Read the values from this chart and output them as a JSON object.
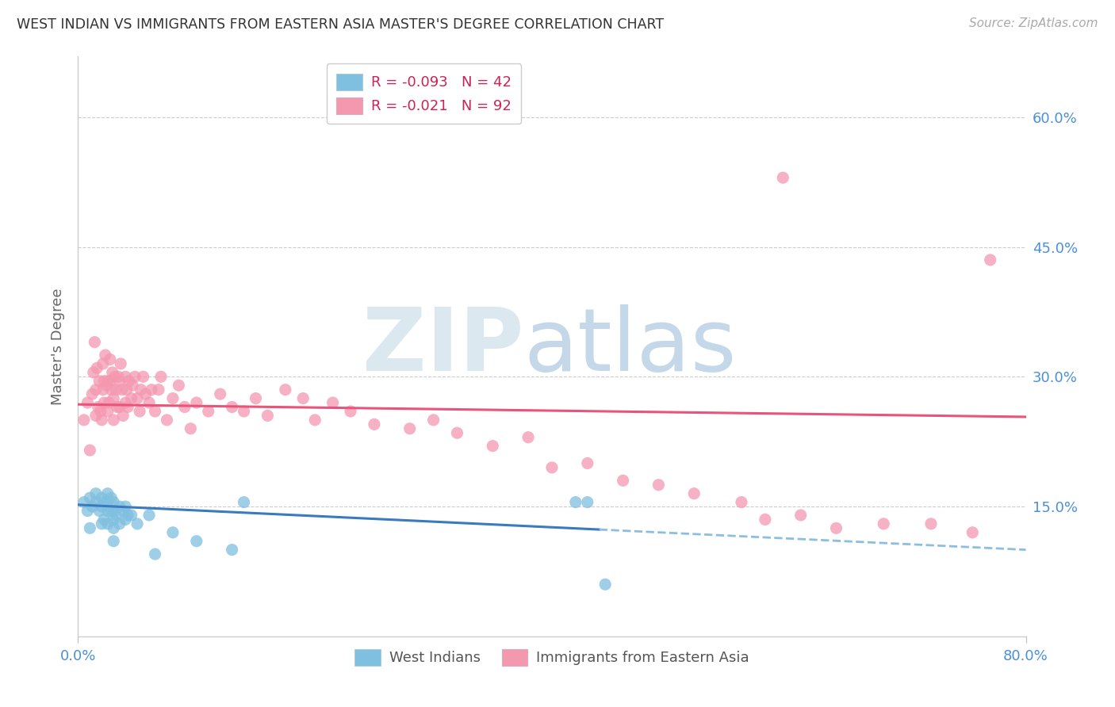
{
  "title": "WEST INDIAN VS IMMIGRANTS FROM EASTERN ASIA MASTER'S DEGREE CORRELATION CHART",
  "source": "Source: ZipAtlas.com",
  "ylabel": "Master's Degree",
  "ytick_labels": [
    "60.0%",
    "45.0%",
    "30.0%",
    "15.0%"
  ],
  "ytick_values": [
    0.6,
    0.45,
    0.3,
    0.15
  ],
  "xmin": 0.0,
  "xmax": 0.8,
  "ymin": 0.0,
  "ymax": 0.67,
  "legend_r1": "-0.093",
  "legend_n1": "42",
  "legend_r2": "-0.021",
  "legend_n2": "92",
  "color_blue": "#7fbfdf",
  "color_pink": "#f498b0",
  "color_blue_line": "#3a7abf",
  "color_pink_line": "#e8547a",
  "color_blue_dash": "#8cbfdf",
  "axis_label_color": "#4a90d9",
  "west_indians_x": [
    0.005,
    0.008,
    0.01,
    0.01,
    0.012,
    0.015,
    0.015,
    0.018,
    0.02,
    0.02,
    0.02,
    0.022,
    0.022,
    0.025,
    0.025,
    0.025,
    0.025,
    0.028,
    0.028,
    0.03,
    0.03,
    0.03,
    0.03,
    0.03,
    0.032,
    0.035,
    0.035,
    0.038,
    0.04,
    0.04,
    0.042,
    0.045,
    0.05,
    0.06,
    0.065,
    0.08,
    0.1,
    0.13,
    0.14,
    0.42,
    0.43,
    0.445
  ],
  "west_indians_y": [
    0.155,
    0.145,
    0.16,
    0.125,
    0.15,
    0.155,
    0.165,
    0.145,
    0.13,
    0.15,
    0.16,
    0.135,
    0.155,
    0.13,
    0.145,
    0.155,
    0.165,
    0.145,
    0.16,
    0.11,
    0.125,
    0.135,
    0.145,
    0.155,
    0.14,
    0.13,
    0.15,
    0.145,
    0.135,
    0.15,
    0.14,
    0.14,
    0.13,
    0.14,
    0.095,
    0.12,
    0.11,
    0.1,
    0.155,
    0.155,
    0.155,
    0.06
  ],
  "eastern_asia_x": [
    0.005,
    0.008,
    0.01,
    0.012,
    0.013,
    0.014,
    0.015,
    0.015,
    0.016,
    0.017,
    0.018,
    0.019,
    0.02,
    0.021,
    0.021,
    0.022,
    0.022,
    0.023,
    0.024,
    0.025,
    0.025,
    0.026,
    0.027,
    0.027,
    0.028,
    0.029,
    0.03,
    0.03,
    0.031,
    0.032,
    0.033,
    0.034,
    0.035,
    0.035,
    0.036,
    0.037,
    0.038,
    0.04,
    0.04,
    0.041,
    0.042,
    0.043,
    0.045,
    0.046,
    0.048,
    0.05,
    0.052,
    0.053,
    0.055,
    0.057,
    0.06,
    0.062,
    0.065,
    0.068,
    0.07,
    0.075,
    0.08,
    0.085,
    0.09,
    0.095,
    0.1,
    0.11,
    0.12,
    0.13,
    0.14,
    0.15,
    0.16,
    0.175,
    0.19,
    0.2,
    0.215,
    0.23,
    0.25,
    0.28,
    0.3,
    0.32,
    0.35,
    0.38,
    0.4,
    0.43,
    0.46,
    0.49,
    0.52,
    0.56,
    0.58,
    0.61,
    0.64,
    0.68,
    0.72,
    0.755,
    0.595,
    0.77
  ],
  "eastern_asia_y": [
    0.25,
    0.27,
    0.215,
    0.28,
    0.305,
    0.34,
    0.255,
    0.285,
    0.31,
    0.265,
    0.295,
    0.26,
    0.25,
    0.285,
    0.315,
    0.27,
    0.295,
    0.325,
    0.29,
    0.26,
    0.295,
    0.27,
    0.295,
    0.32,
    0.285,
    0.305,
    0.25,
    0.275,
    0.3,
    0.285,
    0.265,
    0.3,
    0.265,
    0.295,
    0.315,
    0.285,
    0.255,
    0.27,
    0.3,
    0.285,
    0.265,
    0.295,
    0.275,
    0.29,
    0.3,
    0.275,
    0.26,
    0.285,
    0.3,
    0.28,
    0.27,
    0.285,
    0.26,
    0.285,
    0.3,
    0.25,
    0.275,
    0.29,
    0.265,
    0.24,
    0.27,
    0.26,
    0.28,
    0.265,
    0.26,
    0.275,
    0.255,
    0.285,
    0.275,
    0.25,
    0.27,
    0.26,
    0.245,
    0.24,
    0.25,
    0.235,
    0.22,
    0.23,
    0.195,
    0.2,
    0.18,
    0.175,
    0.165,
    0.155,
    0.135,
    0.14,
    0.125,
    0.13,
    0.13,
    0.12,
    0.53,
    0.435
  ]
}
